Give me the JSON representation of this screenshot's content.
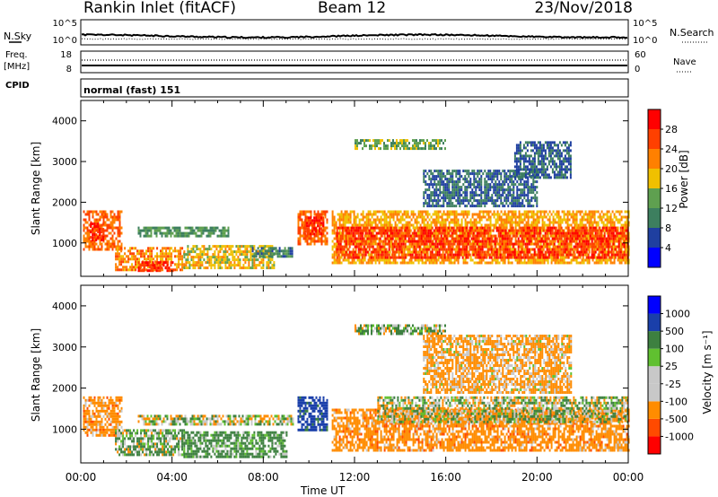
{
  "header": {
    "station": "Rankin Inlet (fitACF)",
    "beam": "Beam 12",
    "date": "23/Nov/2018"
  },
  "top_panels": {
    "nsky_label": "N.Sky",
    "nsearch_label": "N.Search",
    "nsky_ticks": [
      "10^5",
      "10^0"
    ],
    "nsearch_ticks": [
      "10^5",
      "10^0"
    ],
    "freq_label_1": "Freq.",
    "freq_label_2": "[MHz]",
    "freq_ticks": [
      "18",
      "8"
    ],
    "nave_label": "Nave",
    "nave_ticks": [
      "60",
      "0"
    ],
    "cpid_label": "CPID",
    "cpid_text": "normal (fast) 151"
  },
  "colors": {
    "power": [
      "#0000ff",
      "#1f3fa0",
      "#3d7f5f",
      "#5fa050",
      "#f0c000",
      "#ff8000",
      "#ff4000",
      "#ff0000"
    ],
    "velocity": [
      "#ff0000",
      "#ff4a00",
      "#ff8c00",
      "#c8c8c8",
      "#c8c8c8",
      "#60c030",
      "#3d8040",
      "#1a3faa",
      "#0000ff"
    ]
  },
  "chart_data": [
    {
      "type": "heatmap",
      "name": "power",
      "ylabel": "Slant Range [km]",
      "yticks": [
        1000,
        2000,
        3000,
        4000
      ],
      "ylim": [
        180,
        4500
      ],
      "xlim": [
        0,
        24
      ],
      "colorbar_label": "Power [dB]",
      "colorbar_ticks": [
        "28",
        "24",
        "20",
        "16",
        "12",
        "8",
        "4"
      ],
      "colorbar_range": [
        0,
        32
      ],
      "regions": [
        {
          "t0": 0.1,
          "t1": 1.8,
          "r0": 850,
          "r1": 1800,
          "v": 24
        },
        {
          "t0": 0.4,
          "t1": 1.0,
          "r0": 1050,
          "r1": 1500,
          "v": 29
        },
        {
          "t0": 1.5,
          "t1": 4.5,
          "r0": 350,
          "r1": 900,
          "v": 22
        },
        {
          "t0": 2.5,
          "t1": 4.0,
          "r0": 300,
          "r1": 550,
          "v": 28
        },
        {
          "t0": 2.5,
          "t1": 6.5,
          "r0": 1150,
          "r1": 1400,
          "v": 12
        },
        {
          "t0": 4.5,
          "t1": 8.5,
          "r0": 380,
          "r1": 950,
          "v": 18
        },
        {
          "t0": 7.5,
          "t1": 9.3,
          "r0": 700,
          "r1": 900,
          "v": 10
        },
        {
          "t0": 9.5,
          "t1": 10.8,
          "r0": 1000,
          "r1": 1800,
          "v": 24
        },
        {
          "t0": 9.8,
          "t1": 10.6,
          "r0": 1200,
          "r1": 1650,
          "v": 28
        },
        {
          "t0": 11.0,
          "t1": 24.0,
          "r0": 500,
          "r1": 1800,
          "v": 20
        },
        {
          "t0": 11.2,
          "t1": 24.0,
          "r0": 650,
          "r1": 1400,
          "v": 27
        },
        {
          "t0": 12.0,
          "t1": 16.0,
          "r0": 3300,
          "r1": 3550,
          "v": 14
        },
        {
          "t0": 15.0,
          "t1": 20.0,
          "r0": 1900,
          "r1": 2800,
          "v": 8
        },
        {
          "t0": 19.0,
          "t1": 21.5,
          "r0": 2600,
          "r1": 3500,
          "v": 8
        }
      ]
    },
    {
      "type": "heatmap",
      "name": "velocity",
      "ylabel": "Slant Range [km]",
      "xlabel": "Time UT",
      "xticks": [
        "00:00",
        "04:00",
        "08:00",
        "12:00",
        "16:00",
        "20:00",
        "00:00"
      ],
      "yticks": [
        1000,
        2000,
        3000,
        4000
      ],
      "ylim": [
        180,
        4500
      ],
      "xlim": [
        0,
        24
      ],
      "colorbar_label": "Velocity [m s⁻¹]",
      "colorbar_ticks": [
        "1000",
        "500",
        "100",
        "25",
        "-25",
        "-100",
        "-500",
        "-1000"
      ],
      "regions": [
        {
          "t0": 0.1,
          "t1": 1.8,
          "r0": 850,
          "r1": 1800,
          "v": -300
        },
        {
          "t0": 1.5,
          "t1": 4.5,
          "r0": 350,
          "r1": 1000,
          "v": 80
        },
        {
          "t0": 2.5,
          "t1": 9.3,
          "r0": 1150,
          "r1": 1350,
          "v": 0
        },
        {
          "t0": 4.5,
          "t1": 9.0,
          "r0": 350,
          "r1": 950,
          "v": 200
        },
        {
          "t0": 9.5,
          "t1": 10.8,
          "r0": 1000,
          "r1": 1800,
          "v": 700
        },
        {
          "t0": 11.0,
          "t1": 24.0,
          "r0": 500,
          "r1": 1500,
          "v": -300
        },
        {
          "t0": 13.0,
          "t1": 24.0,
          "r0": 1200,
          "r1": 1800,
          "v": 0
        },
        {
          "t0": 12.0,
          "t1": 16.0,
          "r0": 3300,
          "r1": 3550,
          "v": 60
        },
        {
          "t0": 15.0,
          "t1": 21.5,
          "r0": 1900,
          "r1": 3300,
          "v": -200
        }
      ]
    }
  ]
}
